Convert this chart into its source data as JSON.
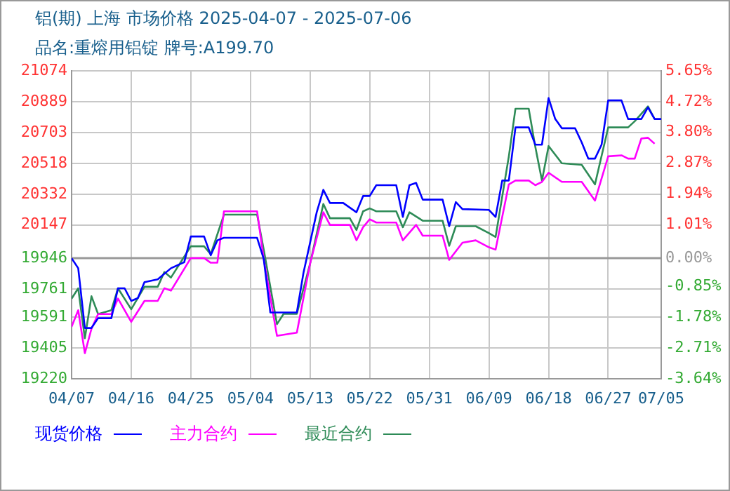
{
  "chart_data": {
    "type": "line",
    "title": "铝(期) 上海 市场价格 2025-04-07 - 2025-07-06",
    "subtitle": "品名:重熔用铝锭 牌号:A199.70",
    "xlim": [
      "2025-04-07",
      "2025-07-05"
    ],
    "xticks": [
      {
        "value": "2025-04-07",
        "label": "04/07"
      },
      {
        "value": "2025-04-16",
        "label": "04/16"
      },
      {
        "value": "2025-04-25",
        "label": "04/25"
      },
      {
        "value": "2025-05-04",
        "label": "05/04"
      },
      {
        "value": "2025-05-13",
        "label": "05/13"
      },
      {
        "value": "2025-05-22",
        "label": "05/22"
      },
      {
        "value": "2025-05-31",
        "label": "05/31"
      },
      {
        "value": "2025-06-09",
        "label": "06/09"
      },
      {
        "value": "2025-06-18",
        "label": "06/18"
      },
      {
        "value": "2025-06-27",
        "label": "06/27"
      },
      {
        "value": "2025-07-05",
        "label": "07/05"
      }
    ],
    "ylim": [
      19220,
      21074
    ],
    "yticks": [
      19220,
      19405,
      19591,
      19761,
      19946,
      20147,
      20332,
      20518,
      20703,
      20889,
      21074
    ],
    "y2lim": [
      -3.64,
      5.65
    ],
    "y2ticks": [
      {
        "value": -3.64,
        "label": "-3.64%"
      },
      {
        "value": -2.71,
        "label": "-2.71%"
      },
      {
        "value": -1.78,
        "label": "-1.78%"
      },
      {
        "value": -0.85,
        "label": "-0.85%"
      },
      {
        "value": 0,
        "label": "0.00%"
      },
      {
        "value": 1.01,
        "label": "1.01%"
      },
      {
        "value": 1.94,
        "label": "1.94%"
      },
      {
        "value": 2.87,
        "label": "2.87%"
      },
      {
        "value": 3.8,
        "label": "3.80%"
      },
      {
        "value": 4.72,
        "label": "4.72%"
      },
      {
        "value": 5.65,
        "label": "5.65%"
      }
    ],
    "ref_lines": [
      {
        "axis": "y2",
        "value": 0,
        "color": "#999999"
      }
    ],
    "grid": true,
    "legend": "bottom",
    "marker": "none",
    "line_style": "solid",
    "series": [
      {
        "name": "现货价格",
        "color": "#0000ff",
        "x": [
          "2025-04-07",
          "2025-04-08",
          "2025-04-09",
          "2025-04-10",
          "2025-04-11",
          "2025-04-13",
          "2025-04-14",
          "2025-04-15",
          "2025-04-16",
          "2025-04-17",
          "2025-04-18",
          "2025-04-20",
          "2025-04-22",
          "2025-04-24",
          "2025-04-25",
          "2025-04-27",
          "2025-04-28",
          "2025-04-29",
          "2025-04-30",
          "2025-05-05",
          "2025-05-06",
          "2025-05-07",
          "2025-05-11",
          "2025-05-12",
          "2025-05-14",
          "2025-05-15",
          "2025-05-16",
          "2025-05-18",
          "2025-05-20",
          "2025-05-21",
          "2025-05-22",
          "2025-05-23",
          "2025-05-26",
          "2025-05-27",
          "2025-05-28",
          "2025-05-29",
          "2025-05-30",
          "2025-06-02",
          "2025-06-03",
          "2025-06-04",
          "2025-06-05",
          "2025-06-09",
          "2025-06-10",
          "2025-06-11",
          "2025-06-12",
          "2025-06-13",
          "2025-06-15",
          "2025-06-16",
          "2025-06-17",
          "2025-06-18",
          "2025-06-19",
          "2025-06-20",
          "2025-06-22",
          "2025-06-23",
          "2025-06-24",
          "2025-06-25",
          "2025-06-26",
          "2025-06-27",
          "2025-06-29",
          "2025-06-30",
          "2025-07-02",
          "2025-07-03",
          "2025-07-04",
          "2025-07-05"
        ],
        "values": [
          19946,
          19886,
          19526,
          19526,
          19585,
          19585,
          19765,
          19765,
          19689,
          19706,
          19802,
          19819,
          19886,
          19922,
          20077,
          20077,
          19964,
          20054,
          20069,
          20069,
          19942,
          19619,
          19619,
          19858,
          20223,
          20358,
          20279,
          20279,
          20223,
          20321,
          20321,
          20386,
          20386,
          20195,
          20386,
          20400,
          20299,
          20299,
          20139,
          20284,
          20242,
          20237,
          20195,
          20414,
          20414,
          20734,
          20734,
          20630,
          20630,
          20911,
          20785,
          20729,
          20729,
          20644,
          20546,
          20546,
          20630,
          20897,
          20897,
          20785,
          20785,
          20855,
          20785,
          20785
        ]
      },
      {
        "name": "主力合约",
        "color": "#ff00ff",
        "x": [
          "2025-04-07",
          "2025-04-08",
          "2025-04-09",
          "2025-04-10",
          "2025-04-11",
          "2025-04-13",
          "2025-04-14",
          "2025-04-16",
          "2025-04-18",
          "2025-04-20",
          "2025-04-21",
          "2025-04-22",
          "2025-04-25",
          "2025-04-27",
          "2025-04-28",
          "2025-04-29",
          "2025-04-30",
          "2025-05-05",
          "2025-05-06",
          "2025-05-08",
          "2025-05-11",
          "2025-05-13",
          "2025-05-15",
          "2025-05-16",
          "2025-05-19",
          "2025-05-20",
          "2025-05-21",
          "2025-05-22",
          "2025-05-23",
          "2025-05-26",
          "2025-05-27",
          "2025-05-29",
          "2025-05-30",
          "2025-06-02",
          "2025-06-03",
          "2025-06-05",
          "2025-06-07",
          "2025-06-09",
          "2025-06-10",
          "2025-06-12",
          "2025-06-13",
          "2025-06-15",
          "2025-06-16",
          "2025-06-17",
          "2025-06-18",
          "2025-06-20",
          "2025-06-23",
          "2025-06-25",
          "2025-06-27",
          "2025-06-29",
          "2025-06-30",
          "2025-07-01",
          "2025-07-02",
          "2025-07-03",
          "2025-07-04"
        ],
        "values": [
          19534,
          19633,
          19374,
          19521,
          19610,
          19610,
          19703,
          19563,
          19689,
          19689,
          19765,
          19751,
          19947,
          19947,
          19919,
          19919,
          20229,
          20229,
          19942,
          19479,
          19498,
          19914,
          20223,
          20147,
          20147,
          20054,
          20133,
          20181,
          20161,
          20161,
          20054,
          20147,
          20082,
          20082,
          19936,
          20040,
          20054,
          20012,
          19998,
          20391,
          20414,
          20414,
          20386,
          20406,
          20461,
          20406,
          20406,
          20293,
          20560,
          20566,
          20546,
          20546,
          20667,
          20672,
          20636
        ]
      },
      {
        "name": "最近合约",
        "color": "#2e8b57",
        "x": [
          "2025-04-07",
          "2025-04-08",
          "2025-04-09",
          "2025-04-10",
          "2025-04-11",
          "2025-04-13",
          "2025-04-14",
          "2025-04-16",
          "2025-04-18",
          "2025-04-20",
          "2025-04-21",
          "2025-04-22",
          "2025-04-25",
          "2025-04-27",
          "2025-04-28",
          "2025-04-30",
          "2025-05-05",
          "2025-05-06",
          "2025-05-08",
          "2025-05-09",
          "2025-05-11",
          "2025-05-13",
          "2025-05-15",
          "2025-05-16",
          "2025-05-19",
          "2025-05-20",
          "2025-05-21",
          "2025-05-22",
          "2025-05-23",
          "2025-05-26",
          "2025-05-27",
          "2025-05-28",
          "2025-05-30",
          "2025-06-02",
          "2025-06-03",
          "2025-06-04",
          "2025-06-07",
          "2025-06-09",
          "2025-06-10",
          "2025-06-12",
          "2025-06-13",
          "2025-06-15",
          "2025-06-16",
          "2025-06-17",
          "2025-06-18",
          "2025-06-20",
          "2025-06-23",
          "2025-06-25",
          "2025-06-27",
          "2025-06-30",
          "2025-07-01",
          "2025-07-03",
          "2025-07-04"
        ],
        "values": [
          19703,
          19765,
          19464,
          19717,
          19610,
          19633,
          19765,
          19639,
          19774,
          19774,
          19863,
          19830,
          20018,
          20018,
          19970,
          20209,
          20209,
          19998,
          19549,
          19611,
          19611,
          19914,
          20273,
          20187,
          20187,
          20116,
          20229,
          20246,
          20229,
          20229,
          20133,
          20223,
          20172,
          20172,
          20021,
          20139,
          20139,
          20097,
          20074,
          20560,
          20847,
          20847,
          20616,
          20414,
          20622,
          20518,
          20509,
          20391,
          20734,
          20734,
          20771,
          20861,
          20785
        ]
      }
    ]
  }
}
